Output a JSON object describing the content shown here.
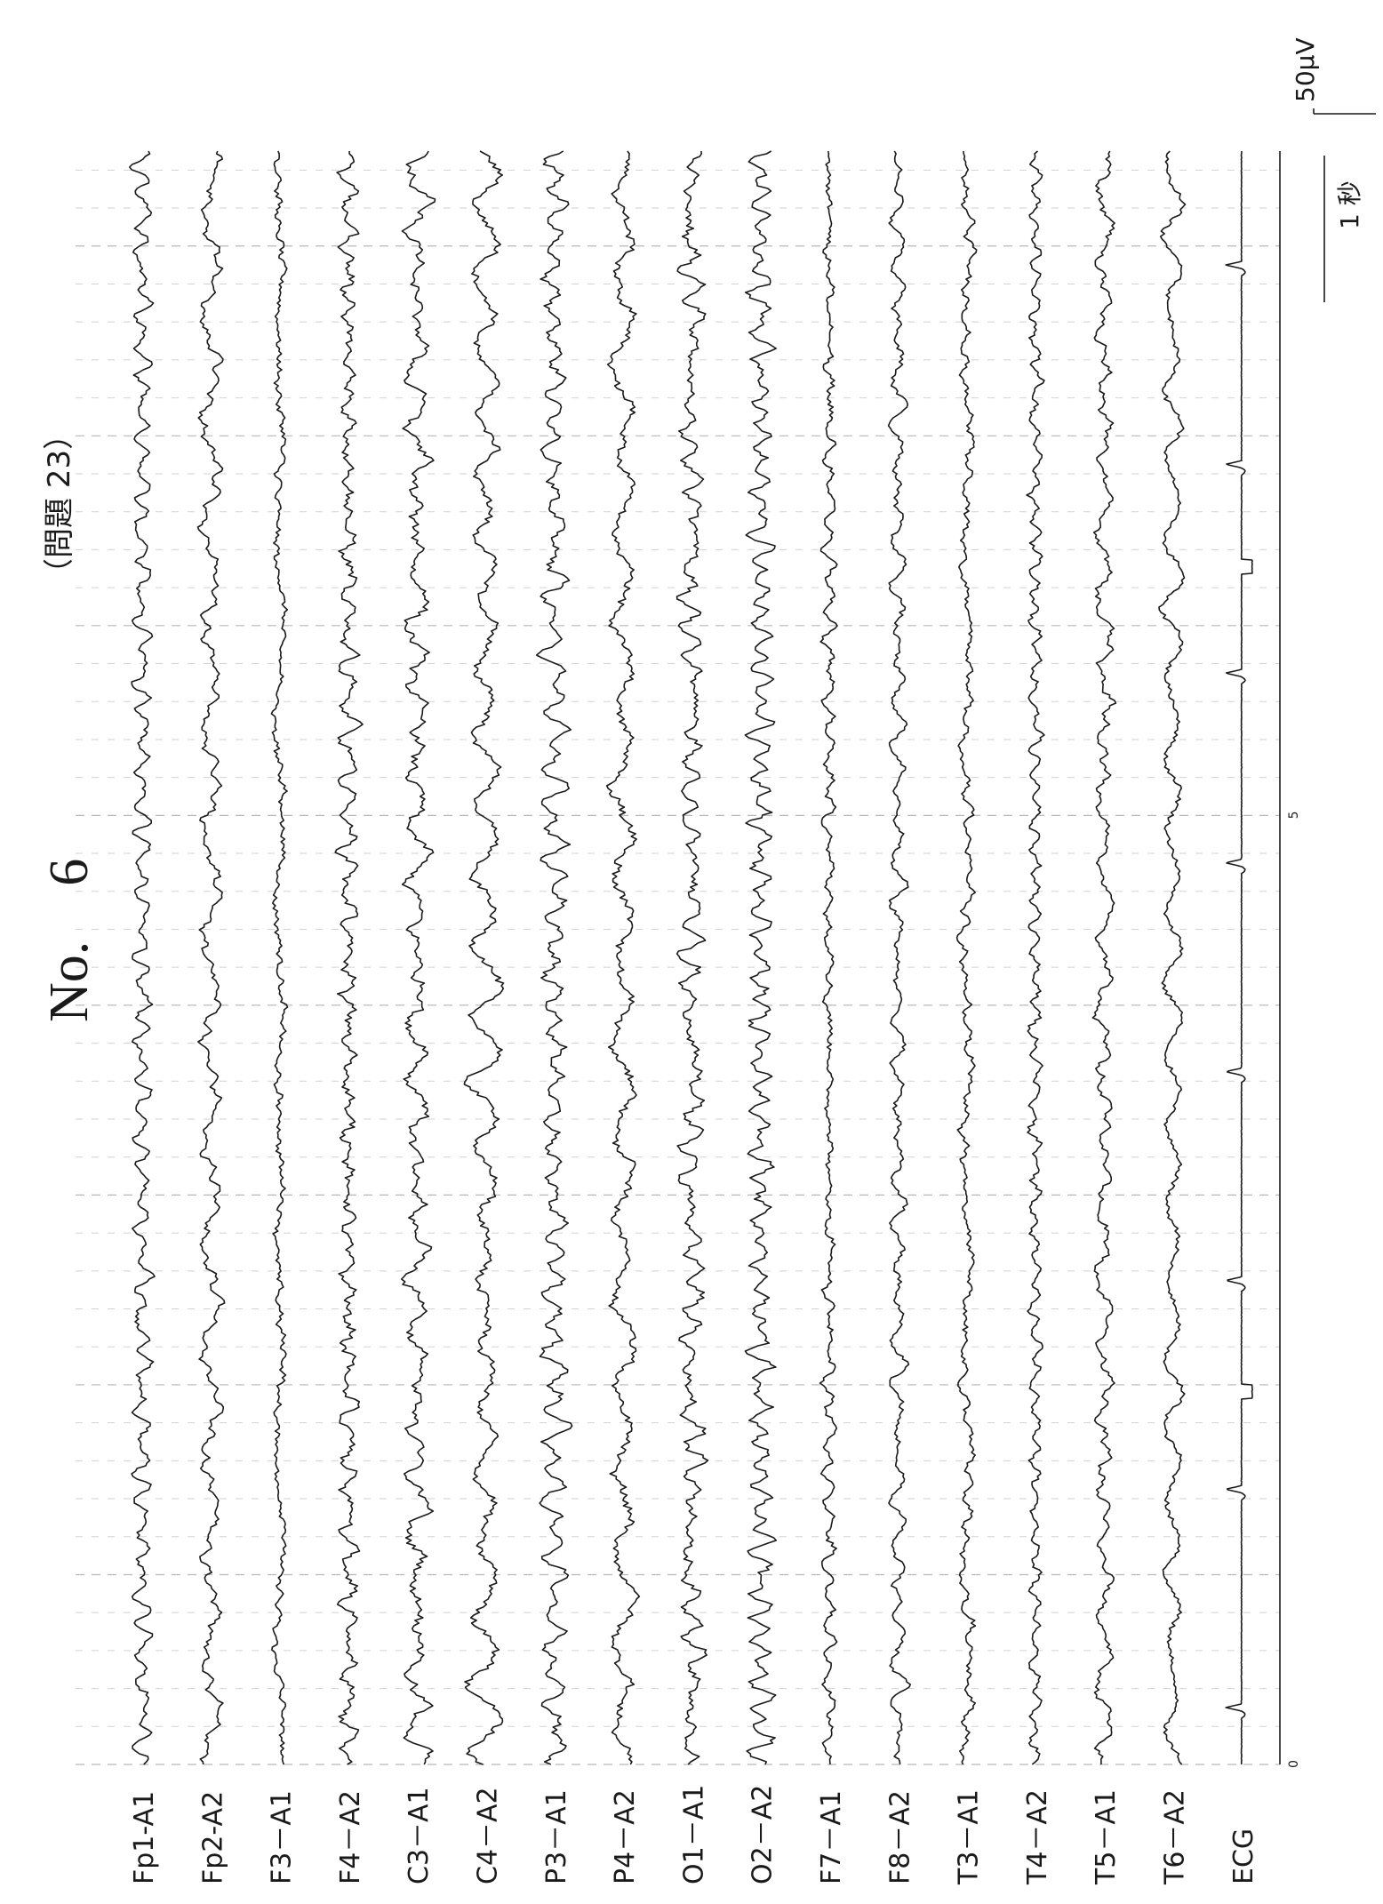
{
  "header": {
    "title": "No.　6",
    "subtitle": "（問題 23）"
  },
  "scale_bar": {
    "amplitude_label": "50µV",
    "time_label": "1 秒"
  },
  "time_axis": {
    "tick_labels": [
      "0",
      "5"
    ],
    "seconds_total": 8.5
  },
  "leads": [
    {
      "name": "Fp1-A1"
    },
    {
      "name": "Fp2-A2"
    },
    {
      "name": "F3－A1"
    },
    {
      "name": "F4－A2"
    },
    {
      "name": "C3－A1"
    },
    {
      "name": "C4－A2"
    },
    {
      "name": "P3－A1"
    },
    {
      "name": "P4－A2"
    },
    {
      "name": "O1－A1"
    },
    {
      "name": "O2－A2"
    },
    {
      "name": "F7－A1"
    },
    {
      "name": "F8－A2"
    },
    {
      "name": "T3－A1"
    },
    {
      "name": "T4－A2"
    },
    {
      "name": "T5－A1"
    },
    {
      "name": "T6－A2"
    },
    {
      "name": "ECG"
    }
  ],
  "ecg": {
    "beats_seconds": [
      0.3,
      1.45,
      2.55,
      3.65,
      4.75,
      5.75,
      6.85,
      7.9
    ],
    "calibration_seconds": [
      2.0,
      6.35
    ]
  }
}
